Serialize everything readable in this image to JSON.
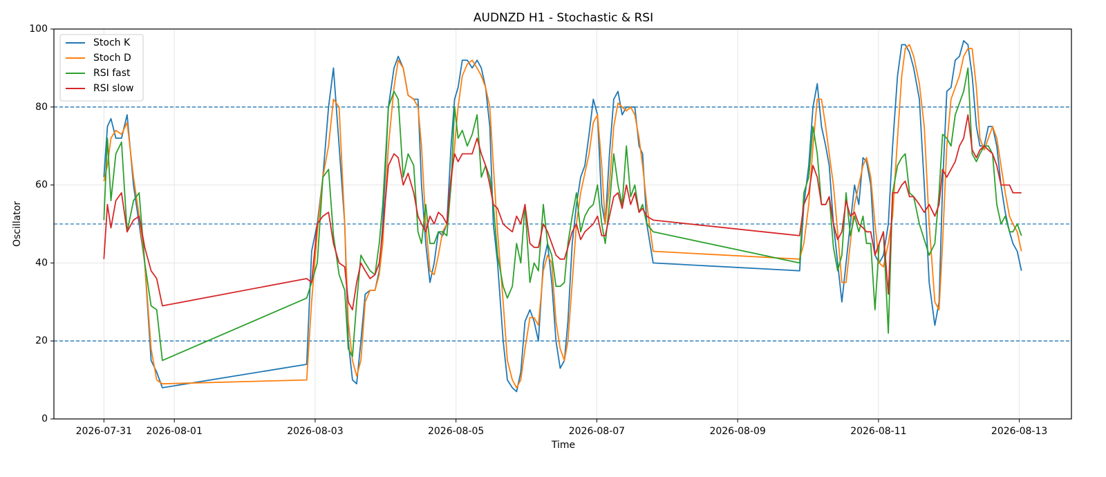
{
  "chart_data": {
    "type": "line",
    "title": "AUDNZD H1 - Stochastic & RSI",
    "x_label": "Time",
    "y_label": "Oscillator",
    "x": [
      0,
      0.05,
      0.1,
      0.17,
      0.25,
      0.33,
      0.42,
      0.5,
      0.58,
      0.67,
      0.75,
      0.83,
      2.88,
      2.95,
      3.03,
      3.11,
      3.19,
      3.26,
      3.34,
      3.42,
      3.47,
      3.53,
      3.59,
      3.65,
      3.71,
      3.78,
      3.85,
      3.91,
      3.96,
      4.04,
      4.12,
      4.18,
      4.25,
      4.32,
      4.4,
      4.46,
      4.51,
      4.57,
      4.63,
      4.69,
      4.75,
      4.81,
      4.87,
      4.93,
      4.98,
      5.03,
      5.09,
      5.16,
      5.23,
      5.3,
      5.36,
      5.42,
      5.48,
      5.53,
      5.59,
      5.67,
      5.73,
      5.8,
      5.86,
      5.92,
      5.98,
      6.05,
      6.11,
      6.17,
      6.24,
      6.3,
      6.36,
      6.42,
      6.48,
      6.54,
      6.59,
      6.65,
      6.71,
      6.77,
      6.83,
      6.89,
      6.95,
      7.01,
      7.07,
      7.12,
      7.18,
      7.24,
      7.3,
      7.36,
      7.42,
      7.48,
      7.54,
      7.6,
      7.65,
      7.71,
      7.8,
      9.88,
      9.94,
      10.01,
      10.07,
      10.13,
      10.19,
      10.25,
      10.3,
      10.36,
      10.42,
      10.48,
      10.54,
      10.6,
      10.66,
      10.72,
      10.78,
      10.83,
      10.89,
      10.95,
      11.01,
      11.07,
      11.14,
      11.2,
      11.27,
      11.33,
      11.38,
      11.44,
      11.5,
      11.58,
      11.65,
      11.72,
      11.8,
      11.86,
      11.91,
      11.97,
      12.03,
      12.09,
      12.15,
      12.21,
      12.27,
      12.33,
      12.39,
      12.44,
      12.5,
      12.56,
      12.62,
      12.68,
      12.74,
      12.8,
      12.86,
      12.91,
      12.97,
      13.03
    ],
    "series": [
      {
        "name": "Stoch K",
        "color": "#1f77b4",
        "values": [
          62,
          75,
          77,
          72,
          72,
          78,
          60,
          50,
          40,
          15,
          12,
          8,
          14,
          43,
          50,
          62,
          80,
          90,
          70,
          50,
          20,
          10,
          9,
          20,
          32,
          33,
          33,
          38,
          50,
          80,
          90,
          93,
          90,
          83,
          82,
          82,
          60,
          45,
          35,
          40,
          48,
          47,
          50,
          70,
          82,
          85,
          92,
          92,
          90,
          92,
          90,
          85,
          75,
          50,
          40,
          20,
          10,
          8,
          7,
          12,
          25,
          28,
          25,
          20,
          40,
          45,
          35,
          20,
          13,
          15,
          25,
          45,
          55,
          62,
          65,
          73,
          82,
          78,
          55,
          50,
          68,
          82,
          84,
          78,
          80,
          80,
          80,
          70,
          68,
          50,
          40,
          38,
          55,
          65,
          80,
          86,
          75,
          70,
          65,
          50,
          40,
          30,
          40,
          50,
          60,
          55,
          67,
          66,
          60,
          42,
          40,
          42,
          50,
          70,
          88,
          96,
          96,
          94,
          90,
          82,
          60,
          35,
          24,
          30,
          60,
          84,
          85,
          92,
          93,
          97,
          96,
          88,
          75,
          70,
          70,
          75,
          75,
          70,
          60,
          53,
          48,
          45,
          43,
          38
        ]
      },
      {
        "name": "Stoch D",
        "color": "#ff7f0e",
        "values": [
          61,
          65,
          72,
          74,
          73,
          76,
          62,
          52,
          40,
          18,
          10,
          9,
          10,
          30,
          48,
          62,
          70,
          82,
          80,
          50,
          25,
          15,
          11,
          15,
          30,
          33,
          33,
          37,
          45,
          70,
          85,
          92,
          90,
          83,
          82,
          80,
          70,
          50,
          38,
          37,
          42,
          48,
          50,
          60,
          70,
          80,
          88,
          91,
          92,
          90,
          88,
          85,
          80,
          65,
          48,
          30,
          15,
          10,
          8,
          10,
          18,
          26,
          26,
          24,
          38,
          42,
          40,
          25,
          18,
          15,
          20,
          35,
          50,
          58,
          63,
          68,
          76,
          78,
          65,
          50,
          60,
          75,
          81,
          80,
          79,
          80,
          78,
          72,
          65,
          55,
          43,
          41,
          45,
          55,
          70,
          82,
          82,
          75,
          68,
          60,
          48,
          35,
          35,
          45,
          55,
          60,
          65,
          67,
          62,
          50,
          40,
          39,
          45,
          52,
          72,
          88,
          95,
          96,
          93,
          86,
          75,
          50,
          30,
          28,
          45,
          70,
          82,
          85,
          88,
          93,
          95,
          95,
          85,
          72,
          69,
          72,
          75,
          72,
          65,
          58,
          52,
          50,
          48,
          43
        ]
      },
      {
        "name": "RSI fast",
        "color": "#2ca02c",
        "values": [
          51,
          72,
          56,
          68,
          71,
          48,
          56,
          58,
          40,
          29,
          28,
          15,
          31,
          35,
          40,
          62,
          64,
          47,
          37,
          33,
          18,
          16,
          30,
          42,
          40,
          38,
          37,
          45,
          55,
          80,
          84,
          82,
          62,
          68,
          65,
          48,
          45,
          55,
          45,
          45,
          48,
          48,
          47,
          60,
          80,
          72,
          74,
          70,
          73,
          78,
          62,
          65,
          62,
          55,
          42,
          34,
          31,
          34,
          45,
          40,
          55,
          35,
          40,
          38,
          55,
          45,
          42,
          34,
          34,
          35,
          45,
          52,
          58,
          48,
          52,
          54,
          55,
          60,
          50,
          45,
          55,
          68,
          60,
          55,
          70,
          57,
          60,
          53,
          55,
          50,
          48,
          40,
          58,
          62,
          75,
          68,
          55,
          55,
          57,
          44,
          38,
          42,
          58,
          47,
          52,
          48,
          52,
          45,
          45,
          28,
          45,
          48,
          22,
          58,
          65,
          67,
          68,
          58,
          57,
          50,
          46,
          42,
          45,
          58,
          73,
          72,
          70,
          78,
          81,
          84,
          90,
          68,
          66,
          68,
          70,
          70,
          68,
          55,
          50,
          52,
          48,
          48,
          50,
          47
        ]
      },
      {
        "name": "RSI slow",
        "color": "#d62728",
        "values": [
          41,
          55,
          49,
          56,
          58,
          48,
          51,
          52,
          44,
          38,
          36,
          29,
          36,
          35,
          50,
          52,
          53,
          45,
          40,
          39,
          30,
          28,
          35,
          40,
          38,
          36,
          37,
          40,
          48,
          65,
          68,
          67,
          60,
          63,
          58,
          52,
          50,
          48,
          52,
          50,
          53,
          52,
          50,
          62,
          68,
          66,
          68,
          68,
          68,
          72,
          68,
          65,
          60,
          55,
          54,
          50,
          49,
          48,
          52,
          50,
          55,
          45,
          44,
          44,
          50,
          48,
          45,
          42,
          41,
          41,
          44,
          48,
          50,
          46,
          48,
          49,
          50,
          52,
          47,
          47,
          52,
          57,
          58,
          54,
          60,
          55,
          58,
          53,
          54,
          52,
          51,
          47,
          55,
          58,
          65,
          62,
          55,
          55,
          57,
          50,
          46,
          48,
          56,
          52,
          53,
          50,
          49,
          48,
          48,
          42,
          45,
          48,
          32,
          58,
          58,
          60,
          61,
          57,
          57,
          55,
          53,
          55,
          52,
          55,
          64,
          62,
          64,
          66,
          70,
          72,
          78,
          69,
          67,
          69,
          70,
          69,
          68,
          65,
          60,
          60,
          60,
          58,
          58,
          58
        ]
      }
    ],
    "xlim": [
      -0.71,
      13.74
    ],
    "xticks": [
      {
        "value": 0,
        "label": "2026-07-31"
      },
      {
        "value": 1,
        "label": "2026-08-01"
      },
      {
        "value": 3,
        "label": "2026-08-03"
      },
      {
        "value": 5,
        "label": "2026-08-05"
      },
      {
        "value": 7,
        "label": "2026-08-07"
      },
      {
        "value": 9,
        "label": "2026-08-09"
      },
      {
        "value": 11,
        "label": "2026-08-11"
      },
      {
        "value": 13,
        "label": "2026-08-13"
      }
    ],
    "ylim": [
      0,
      100
    ],
    "yticks": [
      0,
      20,
      40,
      60,
      80,
      100
    ],
    "hlines": [
      20,
      50,
      80
    ],
    "hline_color": "#1f77b4",
    "grid": true,
    "legend": "upper left"
  }
}
